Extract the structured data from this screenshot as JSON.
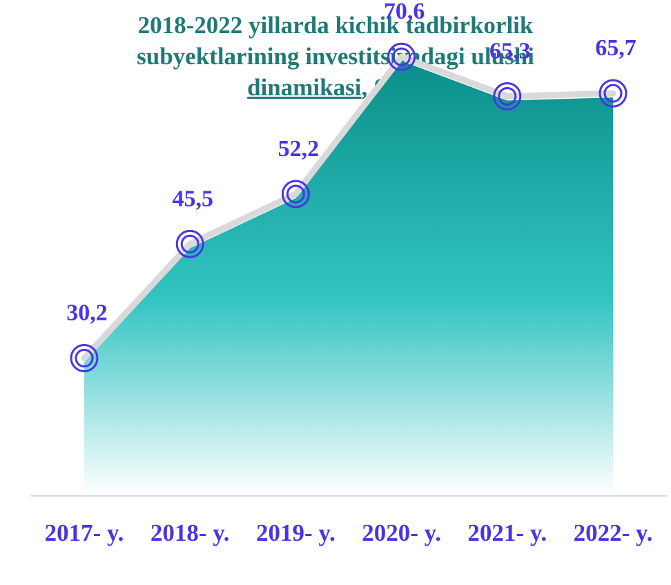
{
  "chart_data": {
    "type": "area",
    "title_lines": [
      "2018-2022 yillarda kichik tadbirkorlik",
      "subyektlarining investitsiyadagi ulushi"
    ],
    "title_last_main": "dinamikasi",
    "title_last_sep": ",",
    "title_unit": "% da",
    "categories": [
      "2017- y.",
      "2018- y.",
      "2019- y.",
      "2020- y.",
      "2021- y.",
      "2022- y."
    ],
    "values": [
      30.2,
      45.5,
      52.2,
      70.6,
      65.3,
      65.7
    ],
    "data_labels": [
      "30,2",
      "45,5",
      "52,2",
      "70,6",
      "65,3",
      "65,7"
    ],
    "grid": false,
    "legend": "none",
    "colors": {
      "area_top": "#0a8f8a",
      "area_mid": "#33c4c2",
      "area_bottom": "#ffffff",
      "line": "#d9d9d9",
      "marker": "#4a34e6",
      "labels": "#4a34e6",
      "title": "#1f7a76",
      "baseline": "#d9d9d9"
    }
  }
}
